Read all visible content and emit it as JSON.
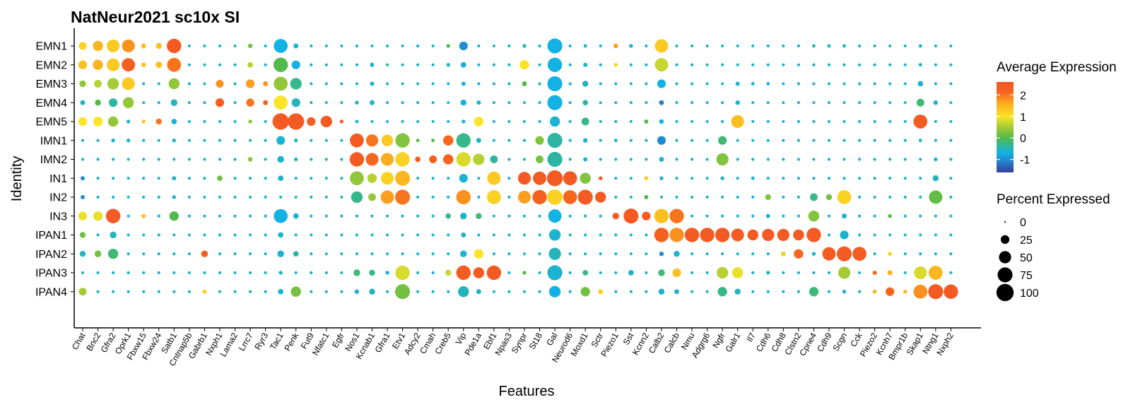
{
  "chart_data": {
    "type": "dotplot",
    "title": "NatNeur2021 sc10x SI",
    "xlabel": "Features",
    "ylabel": "Identity",
    "features": [
      "Chat",
      "Bnc2",
      "Gfra2",
      "Oprk1",
      "Fbxw15",
      "Fbxw24",
      "Satb1",
      "Cntnap5b",
      "Gabrb1",
      "Nxph1",
      "Lama2",
      "Lrrc7",
      "Ryr3",
      "Tac1",
      "Penk",
      "Fut9",
      "Nfatc1",
      "Egfr",
      "Nos1",
      "Kcnab1",
      "Gfra1",
      "Etv1",
      "Adcy2",
      "Cmah",
      "Creb5",
      "Vip",
      "Pde1a",
      "Ebf1",
      "Npas3",
      "Synpr",
      "St18",
      "Gal",
      "Neurod6",
      "Moxd1",
      "Sctr",
      "Piezo1",
      "Sst",
      "Kcnn2",
      "Calb2",
      "Calcb",
      "Nmu",
      "Adgrg6",
      "Ngfr",
      "Galr1",
      "Il7",
      "Cdh6",
      "Cdh8",
      "Clstn2",
      "Cpne4",
      "Cdh9",
      "Scgn",
      "Cck",
      "Piezo2",
      "Kcnh7",
      "Bmpr1b",
      "Skap1",
      "Ntng1",
      "Nxph2"
    ],
    "identities": [
      "EMN1",
      "EMN2",
      "EMN3",
      "EMN4",
      "EMN5",
      "IMN1",
      "IMN2",
      "IN1",
      "IN2",
      "IN3",
      "IPAN1",
      "IPAN2",
      "IPAN3",
      "IPAN4"
    ],
    "default_cell": [
      -0.6,
      3
    ],
    "cells": {
      "EMN1": {
        "Chat": [
          1.2,
          20
        ],
        "Bnc2": [
          1.5,
          35
        ],
        "Gfra2": [
          1.3,
          55
        ],
        "Oprk1": [
          1.8,
          55
        ],
        "Fbxw15": [
          1.4,
          8
        ],
        "Fbxw24": [
          1.4,
          12
        ],
        "Satb1": [
          2.4,
          70
        ],
        "Lrrc7": [
          0.2,
          7
        ],
        "Tac1": [
          -0.7,
          65
        ],
        "Penk": [
          -0.6,
          8
        ],
        "Adcy2": [
          -0.8,
          3
        ],
        "Creb5": [
          0.0,
          5
        ],
        "Vip": [
          -1.0,
          25
        ],
        "Synpr": [
          -0.5,
          5
        ],
        "Gal": [
          -0.7,
          75
        ],
        "Moxd1": [
          -0.6,
          4
        ],
        "Piezo1": [
          1.7,
          7
        ],
        "Sst": [
          -0.6,
          5
        ],
        "Calb2": [
          1.3,
          60
        ],
        "Cpne4": [
          -0.5,
          4
        ],
        "Cdh9": [
          -0.6,
          4
        ],
        "Scgn": [
          -0.6,
          4
        ],
        "Skap1": [
          -0.6,
          4
        ]
      },
      "EMN2": {
        "Chat": [
          1.4,
          25
        ],
        "Bnc2": [
          1.5,
          35
        ],
        "Gfra2": [
          1.3,
          55
        ],
        "Oprk1": [
          2.3,
          60
        ],
        "Fbxw15": [
          1.4,
          7
        ],
        "Fbxw24": [
          1.4,
          14
        ],
        "Satb1": [
          2.0,
          65
        ],
        "Lrrc7": [
          0.6,
          10
        ],
        "Tac1": [
          0.0,
          70
        ],
        "Penk": [
          -0.7,
          25
        ],
        "Kcnab1": [
          -0.6,
          6
        ],
        "Creb5": [
          -0.5,
          5
        ],
        "Vip": [
          -0.7,
          10
        ],
        "Synpr": [
          1.0,
          30
        ],
        "Gal": [
          -0.7,
          70
        ],
        "Moxd1": [
          -0.6,
          6
        ],
        "Piezo1": [
          1.2,
          5
        ],
        "Calb2": [
          0.7,
          60
        ],
        "Skap1": [
          -0.6,
          4
        ]
      },
      "EMN3": {
        "Chat": [
          0.4,
          15
        ],
        "Bnc2": [
          0.6,
          20
        ],
        "Gfra2": [
          0.5,
          45
        ],
        "Oprk1": [
          1.3,
          55
        ],
        "Satb1": [
          0.4,
          40
        ],
        "Nxph1": [
          1.8,
          20
        ],
        "Lrrc7": [
          1.7,
          25
        ],
        "Ryr3": [
          1.8,
          8
        ],
        "Tac1": [
          0.4,
          65
        ],
        "Penk": [
          -0.3,
          45
        ],
        "Kcnab1": [
          -0.6,
          6
        ],
        "Creb5": [
          -0.6,
          3
        ],
        "Vip": [
          -0.6,
          6
        ],
        "Synpr": [
          0.0,
          8
        ],
        "Gal": [
          -0.7,
          75
        ],
        "Moxd1": [
          -0.5,
          12
        ],
        "Calb2": [
          -0.7,
          25
        ],
        "Galr1": [
          -0.6,
          6
        ],
        "Il7": [
          -0.6,
          4
        ],
        "Cdh6": [
          -0.6,
          4
        ],
        "Skap1": [
          -0.6,
          10
        ]
      },
      "EMN4": {
        "Chat": [
          -0.5,
          8
        ],
        "Bnc2": [
          0.0,
          12
        ],
        "Gfra2": [
          -0.4,
          25
        ],
        "Oprk1": [
          0.4,
          40
        ],
        "Satb1": [
          -0.5,
          15
        ],
        "Nxph1": [
          2.3,
          25
        ],
        "Lrrc7": [
          2.0,
          22
        ],
        "Ryr3": [
          2.2,
          8
        ],
        "Tac1": [
          1.0,
          65
        ],
        "Penk": [
          -0.5,
          25
        ],
        "Egfr": [
          -0.6,
          3
        ],
        "Nos1": [
          -0.6,
          5
        ],
        "Kcnab1": [
          -0.6,
          8
        ],
        "Vip": [
          -0.7,
          12
        ],
        "Pde1a": [
          -0.6,
          6
        ],
        "Gal": [
          -0.7,
          75
        ],
        "Moxd1": [
          -0.4,
          10
        ],
        "Calb2": [
          -1.1,
          8
        ],
        "Galr1": [
          -0.6,
          7
        ],
        "Skap1": [
          -0.2,
          20
        ],
        "Ntng1": [
          -0.6,
          7
        ]
      },
      "EMN5": {
        "Chat": [
          1.0,
          25
        ],
        "Bnc2": [
          1.0,
          30
        ],
        "Gfra2": [
          0.4,
          35
        ],
        "Oprk1": [
          -0.5,
          5
        ],
        "Fbxw15": [
          1.4,
          5
        ],
        "Fbxw24": [
          2.0,
          12
        ],
        "Satb1": [
          -0.6,
          10
        ],
        "Lrrc7": [
          0.3,
          5
        ],
        "Tac1": [
          2.4,
          90
        ],
        "Penk": [
          2.4,
          90
        ],
        "Fut9": [
          2.3,
          25
        ],
        "Nfatc1": [
          2.4,
          45
        ],
        "Egfr": [
          2.3,
          5
        ],
        "Nos1": [
          -0.6,
          4
        ],
        "Vip": [
          -0.6,
          5
        ],
        "Pde1a": [
          1.0,
          30
        ],
        "Gal": [
          -0.6,
          35
        ],
        "Moxd1": [
          -0.3,
          20
        ],
        "Kcnn2": [
          0.0,
          6
        ],
        "Calb2": [
          -0.7,
          7
        ],
        "Galr1": [
          1.4,
          55
        ],
        "Skap1": [
          2.4,
          65
        ]
      },
      "IMN1": {
        "Gfra2": [
          -0.6,
          5
        ],
        "Oprk1": [
          -0.6,
          5
        ],
        "Satb1": [
          -0.6,
          5
        ],
        "Tac1": [
          -0.6,
          25
        ],
        "Penk": [
          -0.5,
          5
        ],
        "Nos1": [
          2.4,
          65
        ],
        "Kcnab1": [
          2.0,
          50
        ],
        "Gfra1": [
          1.3,
          45
        ],
        "Etv1": [
          0.3,
          70
        ],
        "Adcy2": [
          0.0,
          4
        ],
        "Cmah": [
          0.0,
          4
        ],
        "Creb5": [
          2.1,
          35
        ],
        "Vip": [
          -0.3,
          70
        ],
        "Pde1a": [
          -0.6,
          8
        ],
        "St18": [
          0.3,
          25
        ],
        "Gal": [
          -0.4,
          75
        ],
        "Moxd1": [
          -0.6,
          7
        ],
        "Piezo1": [
          -0.6,
          4
        ],
        "Calb2": [
          -1.0,
          25
        ],
        "Ngfr": [
          -0.2,
          25
        ],
        "Skap1": [
          -0.6,
          4
        ]
      },
      "IMN2": {
        "Lrrc7": [
          0.3,
          7
        ],
        "Tac1": [
          -0.6,
          15
        ],
        "Penk": [
          -0.5,
          5
        ],
        "Nos1": [
          2.4,
          70
        ],
        "Kcnab1": [
          2.1,
          55
        ],
        "Gfra1": [
          1.6,
          55
        ],
        "Etv1": [
          1.2,
          70
        ],
        "Adcy2": [
          2.3,
          10
        ],
        "Cmah": [
          2.3,
          20
        ],
        "Creb5": [
          2.1,
          35
        ],
        "Vip": [
          0.8,
          70
        ],
        "Pde1a": [
          0.6,
          45
        ],
        "Ebf1": [
          -0.4,
          20
        ],
        "St18": [
          0.2,
          20
        ],
        "Gal": [
          -0.4,
          75
        ],
        "Moxd1": [
          -0.6,
          6
        ],
        "Calb2": [
          -0.6,
          8
        ],
        "Ngfr": [
          0.3,
          50
        ],
        "Ntng1": [
          -0.6,
          5
        ]
      },
      "IN1": {
        "Chat": [
          -1.0,
          6
        ],
        "Satb1": [
          -0.6,
          6
        ],
        "Nxph1": [
          0.2,
          10
        ],
        "Tac1": [
          -0.6,
          10
        ],
        "Nos1": [
          0.4,
          65
        ],
        "Kcnab1": [
          0.6,
          30
        ],
        "Gfra1": [
          1.2,
          55
        ],
        "Etv1": [
          1.5,
          75
        ],
        "Vip": [
          -0.6,
          25
        ],
        "Ebf1": [
          1.3,
          60
        ],
        "Synpr": [
          2.4,
          55
        ],
        "St18": [
          2.4,
          60
        ],
        "Gal": [
          2.4,
          85
        ],
        "Neurod6": [
          2.4,
          65
        ],
        "Moxd1": [
          0.3,
          40
        ],
        "Sctr": [
          2.4,
          5
        ],
        "Kcnn2": [
          1.2,
          6
        ],
        "Calb2": [
          -0.6,
          5
        ],
        "Ngfr": [
          -0.6,
          5
        ],
        "Il7": [
          -0.6,
          4
        ],
        "Ntng1": [
          -0.5,
          12
        ]
      },
      "IN2": {
        "Chat": [
          -1.0,
          6
        ],
        "Satb1": [
          -0.6,
          5
        ],
        "Nos1": [
          -0.3,
          45
        ],
        "Kcnab1": [
          0.4,
          20
        ],
        "Gfra1": [
          1.7,
          60
        ],
        "Etv1": [
          2.0,
          75
        ],
        "Vip": [
          1.8,
          70
        ],
        "Ebf1": [
          1.2,
          65
        ],
        "Synpr": [
          1.7,
          55
        ],
        "St18": [
          2.2,
          70
        ],
        "Gal": [
          1.2,
          80
        ],
        "Neurod6": [
          2.1,
          65
        ],
        "Moxd1": [
          2.4,
          75
        ],
        "Sctr": [
          2.4,
          40
        ],
        "Kcnn2": [
          0.0,
          6
        ],
        "Cdh6": [
          0.3,
          12
        ],
        "Cpne4": [
          -0.3,
          20
        ],
        "Cdh9": [
          0.2,
          12
        ],
        "Scgn": [
          1.2,
          65
        ],
        "Ntng1": [
          0.1,
          60
        ]
      },
      "IN3": {
        "Chat": [
          0.9,
          25
        ],
        "Bnc2": [
          0.9,
          30
        ],
        "Gfra2": [
          2.4,
          70
        ],
        "Fbxw15": [
          1.4,
          6
        ],
        "Satb1": [
          0.0,
          30
        ],
        "Tac1": [
          -0.7,
          65
        ],
        "Penk": [
          -0.6,
          10
        ],
        "Creb5": [
          -0.3,
          10
        ],
        "Vip": [
          -0.6,
          15
        ],
        "Pde1a": [
          -0.2,
          12
        ],
        "Gal": [
          -0.7,
          60
        ],
        "Piezo1": [
          2.3,
          15
        ],
        "Sst": [
          2.4,
          75
        ],
        "Kcnn2": [
          2.4,
          25
        ],
        "Calb2": [
          1.4,
          70
        ],
        "Calcb": [
          2.0,
          70
        ],
        "Cdh6": [
          -0.5,
          6
        ],
        "Cpne4": [
          0.3,
          40
        ],
        "Scgn": [
          -0.6,
          8
        ],
        "Kcnh7": [
          0.0,
          5
        ]
      },
      "IPAN1": {
        "Chat": [
          0.2,
          12
        ],
        "Gfra2": [
          -0.5,
          15
        ],
        "Tac1": [
          -0.6,
          10
        ],
        "Vip": [
          -0.6,
          8
        ],
        "Gal": [
          -0.6,
          45
        ],
        "Calb2": [
          2.2,
          70
        ],
        "Calcb": [
          1.8,
          70
        ],
        "Nmu": [
          2.4,
          70
        ],
        "Adgrg6": [
          2.4,
          70
        ],
        "Ngfr": [
          2.4,
          70
        ],
        "Galr1": [
          2.4,
          55
        ],
        "Il7": [
          2.4,
          40
        ],
        "Cdh6": [
          2.4,
          50
        ],
        "Cdh8": [
          2.4,
          50
        ],
        "Clstn2": [
          2.4,
          40
        ],
        "Cpne4": [
          2.4,
          70
        ],
        "Scgn": [
          -0.6,
          25
        ]
      },
      "IPAN2": {
        "Chat": [
          -0.5,
          12
        ],
        "Bnc2": [
          0.2,
          15
        ],
        "Gfra2": [
          -0.2,
          35
        ],
        "Gabrb1": [
          2.3,
          15
        ],
        "Tac1": [
          -0.6,
          15
        ],
        "Penk": [
          -0.4,
          10
        ],
        "Vip": [
          -0.6,
          15
        ],
        "Pde1a": [
          1.0,
          30
        ],
        "Gal": [
          -0.5,
          50
        ],
        "Calb2": [
          -1.0,
          7
        ],
        "Calcb": [
          -0.6,
          12
        ],
        "Cdh8": [
          0.8,
          8
        ],
        "Clstn2": [
          2.1,
          30
        ],
        "Cpne4": [
          -0.6,
          5
        ],
        "Cdh9": [
          2.4,
          60
        ],
        "Scgn": [
          2.4,
          75
        ],
        "Cck": [
          2.4,
          65
        ],
        "Kcnh7": [
          1.2,
          5
        ]
      },
      "IPAN3": {
        "Tac1": [
          -0.6,
          5
        ],
        "Nos1": [
          -0.2,
          15
        ],
        "Kcnab1": [
          -0.3,
          12
        ],
        "Gfra1": [
          -0.6,
          5
        ],
        "Etv1": [
          0.8,
          70
        ],
        "Creb5": [
          0.7,
          12
        ],
        "Vip": [
          2.4,
          70
        ],
        "Pde1a": [
          2.4,
          40
        ],
        "Ebf1": [
          2.4,
          70
        ],
        "Synpr": [
          0.0,
          5
        ],
        "Gal": [
          -0.6,
          75
        ],
        "Moxd1": [
          -0.3,
          10
        ],
        "Sst": [
          -0.6,
          10
        ],
        "Calb2": [
          -0.2,
          15
        ],
        "Calcb": [
          1.4,
          25
        ],
        "Ngfr": [
          0.6,
          45
        ],
        "Galr1": [
          0.9,
          40
        ],
        "Cdh6": [
          -0.4,
          5
        ],
        "Scgn": [
          0.5,
          50
        ],
        "Piezo2": [
          2.2,
          6
        ],
        "Kcnh7": [
          1.6,
          8
        ],
        "Skap1": [
          0.8,
          55
        ],
        "Ntng1": [
          1.5,
          65
        ]
      },
      "IPAN4": {
        "Chat": [
          0.5,
          20
        ],
        "Gabrb1": [
          1.2,
          6
        ],
        "Tac1": [
          -0.6,
          10
        ],
        "Penk": [
          0.2,
          35
        ],
        "Nos1": [
          -0.6,
          7
        ],
        "Kcnab1": [
          -0.5,
          12
        ],
        "Etv1": [
          0.2,
          75
        ],
        "Vip": [
          -0.5,
          40
        ],
        "Pde1a": [
          -0.6,
          8
        ],
        "Gal": [
          -0.7,
          45
        ],
        "Moxd1": [
          0.2,
          30
        ],
        "Sctr": [
          1.2,
          8
        ],
        "Calb2": [
          -0.6,
          12
        ],
        "Calcb": [
          -0.6,
          8
        ],
        "Ngfr": [
          -0.3,
          30
        ],
        "Galr1": [
          -0.5,
          12
        ],
        "Cpne4": [
          -0.2,
          30
        ],
        "Scgn": [
          -0.6,
          5
        ],
        "Piezo2": [
          1.6,
          5
        ],
        "Kcnh7": [
          2.1,
          25
        ],
        "Bmpr1b": [
          1.5,
          5
        ],
        "Skap1": [
          1.8,
          65
        ],
        "Ntng1": [
          2.4,
          75
        ],
        "Nxph2": [
          2.4,
          70
        ]
      }
    },
    "color_scale": {
      "title": "Average Expression",
      "domain": [
        -1.6,
        2.6
      ],
      "ticks": [
        2,
        1,
        0,
        -1
      ],
      "tick_labels": [
        "2",
        "1",
        "0",
        "-1"
      ],
      "stops": [
        {
          "v": -1.6,
          "c": "#3a3e99"
        },
        {
          "v": -1.2,
          "c": "#2a75c6"
        },
        {
          "v": -0.7,
          "c": "#12b2e5"
        },
        {
          "v": 0.0,
          "c": "#52ba4a"
        },
        {
          "v": 0.4,
          "c": "#93c73a"
        },
        {
          "v": 1.0,
          "c": "#fbe425"
        },
        {
          "v": 1.6,
          "c": "#fbad1e"
        },
        {
          "v": 2.1,
          "c": "#f6661f"
        },
        {
          "v": 2.6,
          "c": "#f15424"
        }
      ]
    },
    "size_scale": {
      "title": "Percent Expressed",
      "breaks": [
        0,
        25,
        50,
        75,
        100
      ],
      "labels": [
        "0",
        "25",
        "50",
        "75",
        "100"
      ]
    },
    "grid": false,
    "legend_position": "right"
  }
}
